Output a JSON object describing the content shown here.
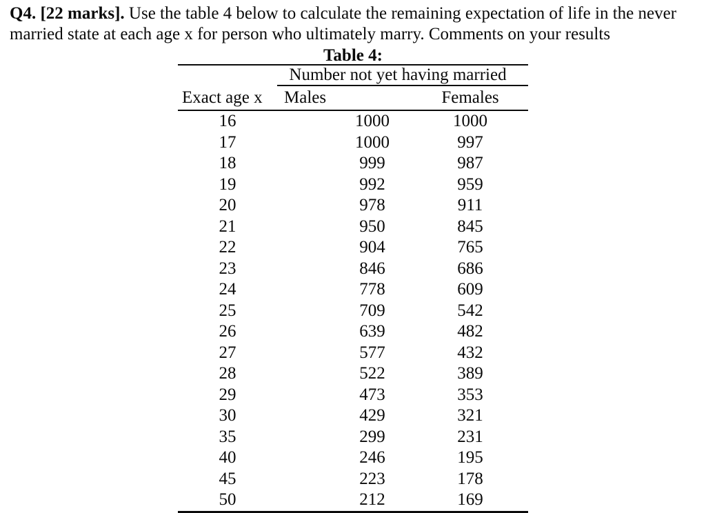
{
  "page": {
    "background": "#ffffff",
    "text_color": "#0a0a0a",
    "rule_color": "#0a0a0a"
  },
  "question": {
    "marks_label": "Q4. [22 marks].",
    "line1_rest": " Use the table 4 below to calculate the remaining expectation of life in the never",
    "line2": "married state at each age x for person who ultimately marry. Comments on your results"
  },
  "table": {
    "title": "Table 4:",
    "group_header": "Number not yet having married",
    "columns": {
      "age": "Exact age x",
      "males": "Males",
      "females": "Females"
    },
    "rows": [
      {
        "age": "16",
        "males": "1000",
        "females": "1000"
      },
      {
        "age": "17",
        "males": "1000",
        "females": "997"
      },
      {
        "age": "18",
        "males": "999",
        "females": "987"
      },
      {
        "age": "19",
        "males": "992",
        "females": "959"
      },
      {
        "age": "20",
        "males": "978",
        "females": "911"
      },
      {
        "age": "21",
        "males": "950",
        "females": "845"
      },
      {
        "age": "22",
        "males": "904",
        "females": "765"
      },
      {
        "age": "23",
        "males": "846",
        "females": "686"
      },
      {
        "age": "24",
        "males": "778",
        "females": "609"
      },
      {
        "age": "25",
        "males": "709",
        "females": "542"
      },
      {
        "age": "26",
        "males": "639",
        "females": "482"
      },
      {
        "age": "27",
        "males": "577",
        "females": "432"
      },
      {
        "age": "28",
        "males": "522",
        "females": "389"
      },
      {
        "age": "29",
        "males": "473",
        "females": "353"
      },
      {
        "age": "30",
        "males": "429",
        "females": "321"
      },
      {
        "age": "35",
        "males": "299",
        "females": "231"
      },
      {
        "age": "40",
        "males": "246",
        "females": "195"
      },
      {
        "age": "45",
        "males": "223",
        "females": "178"
      },
      {
        "age": "50",
        "males": "212",
        "females": "169"
      }
    ]
  }
}
